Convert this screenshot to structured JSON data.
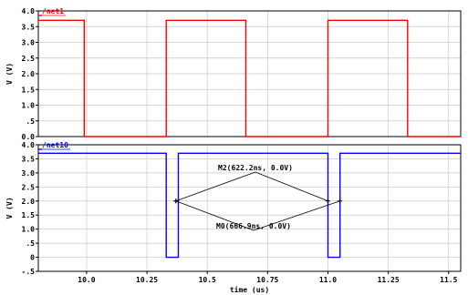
{
  "chart_data": [
    {
      "type": "line",
      "legend": "/net1",
      "ylabel": "V (V)",
      "xlabel": "",
      "xlim": [
        9.8,
        11.55
      ],
      "ylim": [
        0.0,
        4.0
      ],
      "yticks": [
        "4.0",
        "3.5",
        "3.0",
        "2.5",
        "2.0",
        "1.5",
        "1.0",
        ".5",
        "0.0"
      ],
      "ytick_values": [
        4.0,
        3.5,
        3.0,
        2.5,
        2.0,
        1.5,
        1.0,
        0.5,
        0.0
      ],
      "xgrid": [
        10.0,
        10.25,
        10.5,
        10.75,
        11.0,
        11.25,
        11.5
      ],
      "series": [
        {
          "name": "/net1",
          "color": "#ff0000",
          "x": [
            9.8,
            9.99,
            9.99,
            10.33,
            10.33,
            10.66,
            10.66,
            11.0,
            11.0,
            11.33,
            11.33,
            11.55
          ],
          "y": [
            3.7,
            3.7,
            0.0,
            0.0,
            3.7,
            3.7,
            0.0,
            0.0,
            3.7,
            3.7,
            0.0,
            0.0
          ]
        }
      ]
    },
    {
      "type": "line",
      "legend": "/net10",
      "ylabel": "V (V)",
      "xlabel": "time (us)",
      "xlim": [
        9.8,
        11.55
      ],
      "ylim": [
        -0.5,
        4.0
      ],
      "yticks": [
        "4.0",
        "3.5",
        "3.0",
        "2.5",
        "2.0",
        "1.5",
        "1.0",
        ".5",
        "0",
        "-.5"
      ],
      "ytick_values": [
        4.0,
        3.5,
        3.0,
        2.5,
        2.0,
        1.5,
        1.0,
        0.5,
        0.0,
        -0.5
      ],
      "xticks": [
        "10.0",
        "10.25",
        "10.5",
        "10.75",
        "11.0",
        "11.25",
        "11.5"
      ],
      "xtick_values": [
        10.0,
        10.25,
        10.5,
        10.75,
        11.0,
        11.25,
        11.5
      ],
      "series": [
        {
          "name": "/net10",
          "color": "#0000ff",
          "x": [
            9.8,
            10.33,
            10.33,
            10.38,
            10.38,
            11.0,
            11.0,
            11.05,
            11.05,
            11.55
          ],
          "y": [
            3.7,
            3.7,
            0.0,
            0.0,
            3.7,
            3.7,
            0.0,
            0.0,
            3.7,
            3.7
          ]
        }
      ],
      "markers": [
        {
          "label": "M2(622.2ns, 0.0V)",
          "points": [
            {
              "x": 10.37,
              "y": 2.0
            },
            {
              "x": 11.0,
              "y": 2.0
            }
          ]
        },
        {
          "label": "M0(666.9ns, 0.0V)",
          "points": [
            {
              "x": 10.37,
              "y": 2.0
            },
            {
              "x": 11.05,
              "y": 2.0
            }
          ]
        }
      ]
    }
  ]
}
